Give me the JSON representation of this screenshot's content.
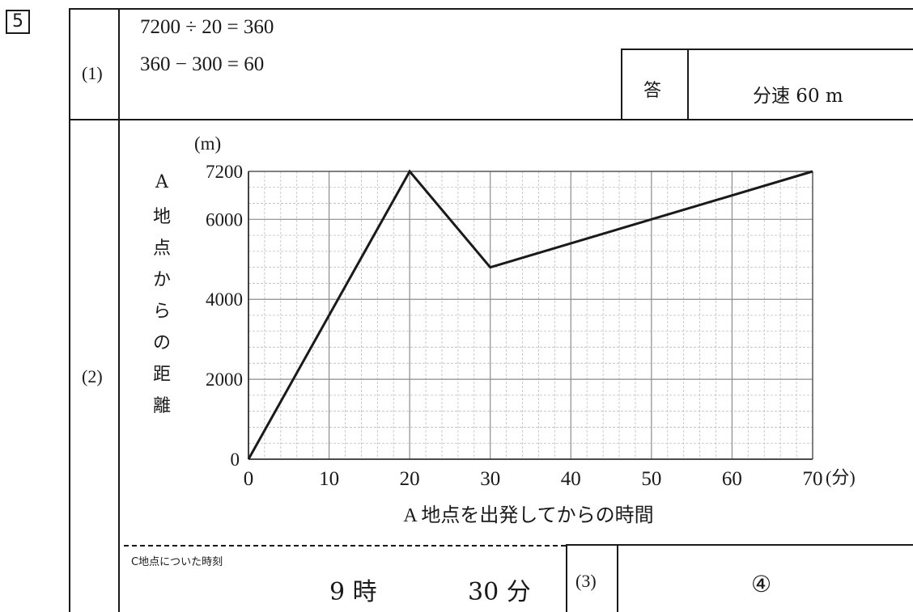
{
  "problem_number": "5",
  "part1": {
    "label": "(1)",
    "eq1": "7200 ÷ 20 = 360",
    "eq2": "360 − 300 = 60",
    "answer_label": "答",
    "answer": "分速 60 m"
  },
  "part2": {
    "label": "(2)",
    "y_axis_label_chars": [
      "A",
      "地",
      "点",
      "か",
      "ら",
      "の",
      "距",
      "離"
    ],
    "arrival_caption": "C地点についた時刻",
    "arrival_hour": "9 時",
    "arrival_minute": "30 分"
  },
  "part3": {
    "label": "(3)",
    "answer": "④"
  },
  "chart_data": {
    "type": "line",
    "title": "",
    "xlabel": "A 地点を出発してからの時間",
    "x_unit": "(分)",
    "ylabel": "A地点からの距離",
    "y_unit": "(m)",
    "xlim": [
      0,
      70
    ],
    "ylim": [
      0,
      7200
    ],
    "x_ticks": [
      0,
      10,
      20,
      30,
      40,
      50,
      60,
      70
    ],
    "y_ticks": [
      0,
      2000,
      4000,
      6000,
      7200
    ],
    "grid": true,
    "series": [
      {
        "x": [
          0,
          20,
          30,
          70
        ],
        "y": [
          0,
          7200,
          4800,
          7200
        ]
      }
    ]
  }
}
